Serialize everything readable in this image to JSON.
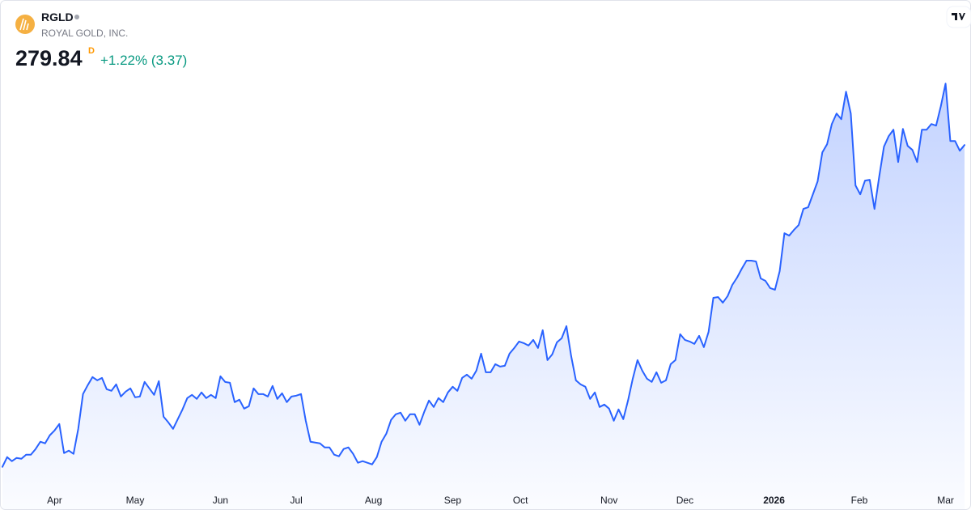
{
  "header": {
    "symbol": "RGLD",
    "company": "ROYAL GOLD, INC.",
    "price": "279.84",
    "interval": "D",
    "change": "+1.22% (3.37)"
  },
  "chart_data": {
    "type": "area",
    "color": "#2962ff",
    "values": [
      154.35,
      158.14,
      156.56,
      157.82,
      157.5,
      159.08,
      159.08,
      161.29,
      164.13,
      163.5,
      166.65,
      168.54,
      171.06,
      159.71,
      160.66,
      159.4,
      169.17,
      182.73,
      186.2,
      189.35,
      188.09,
      189.03,
      184.62,
      183.99,
      186.51,
      181.78,
      183.67,
      184.94,
      181.47,
      181.78,
      187.46,
      184.94,
      182.41,
      187.77,
      173.9,
      171.69,
      169.17,
      172.95,
      176.74,
      181.15,
      182.41,
      180.84,
      183.36,
      181.15,
      182.41,
      181.15,
      189.67,
      187.46,
      187.14,
      179.58,
      180.52,
      177.05,
      178.0,
      184.94,
      182.73,
      182.73,
      181.78,
      185.88,
      180.84,
      183.04,
      179.58,
      181.78,
      182.1,
      182.73,
      172.32,
      164.13,
      163.81,
      163.5,
      161.92,
      161.92,
      159.08,
      158.45,
      161.29,
      161.92,
      159.4,
      155.93,
      156.56,
      155.93,
      155.3,
      158.14,
      164.13,
      167.28,
      172.64,
      174.85,
      175.48,
      172.32,
      174.85,
      174.85,
      170.75,
      175.79,
      180.21,
      177.68,
      181.15,
      179.58,
      183.36,
      185.57,
      183.99,
      189.03,
      190.3,
      188.72,
      191.87,
      198.49,
      191.24,
      191.24,
      194.39,
      193.45,
      193.76,
      198.49,
      200.7,
      203.22,
      202.59,
      201.65,
      203.85,
      200.7,
      207.64,
      195.97,
      198.18,
      202.91,
      204.48,
      209.21,
      197.55,
      188.09,
      186.51,
      185.57,
      180.84,
      183.36,
      177.68,
      178.63,
      177.05,
      172.32,
      176.74,
      172.95,
      180.21,
      188.72,
      195.97,
      191.87,
      188.72,
      187.46,
      191.24,
      187.14,
      188.09,
      194.39,
      195.97,
      206.06,
      203.85,
      203.22,
      202.28,
      205.43,
      201.02,
      207.01,
      220.25,
      220.56,
      218.36,
      220.88,
      225.29,
      228.13,
      231.6,
      234.75,
      234.75,
      234.44,
      227.82,
      226.87,
      224.03,
      223.4,
      230.65,
      245.47,
      244.53,
      246.73,
      248.63,
      254.93,
      255.56,
      260.61,
      265.65,
      277.0,
      280.16,
      288.04,
      292.14,
      289.93,
      300.65,
      292.14,
      264.08,
      260.61,
      265.97,
      266.28,
      254.93,
      267.54,
      279.21,
      283.31,
      285.83,
      273.22,
      286.15,
      279.53,
      277.95,
      273.22,
      285.83,
      285.83,
      288.04,
      287.41,
      294.98,
      303.8,
      281.42,
      281.42,
      277.63,
      279.84
    ],
    "ylim": [
      147,
      308
    ],
    "xlim": [
      0,
      203
    ],
    "xticks": [
      {
        "value": 11,
        "label": "Apr"
      },
      {
        "value": 28,
        "label": "May"
      },
      {
        "value": 46,
        "label": "Jun"
      },
      {
        "value": 62,
        "label": "Jul"
      },
      {
        "value": 78.3,
        "label": "Aug"
      },
      {
        "value": 95,
        "label": "Sep"
      },
      {
        "value": 109.3,
        "label": "Oct"
      },
      {
        "value": 128,
        "label": "Nov"
      },
      {
        "value": 144,
        "label": "Dec"
      },
      {
        "value": 162.8,
        "label": "2026"
      },
      {
        "value": 180.8,
        "label": "Feb"
      },
      {
        "value": 199,
        "label": "Mar"
      }
    ]
  }
}
